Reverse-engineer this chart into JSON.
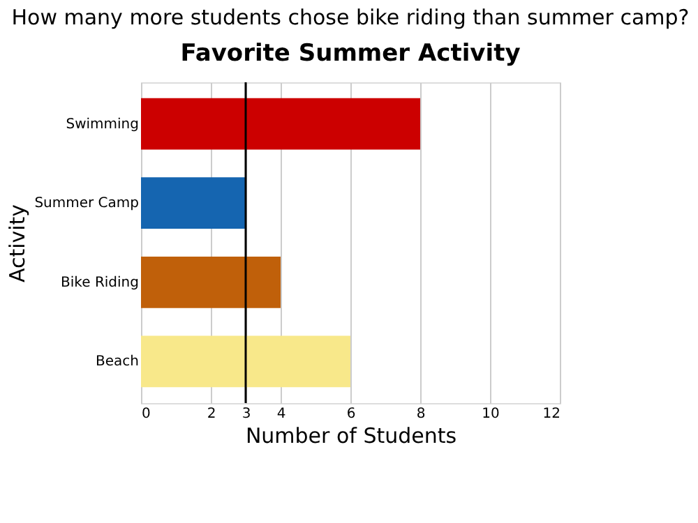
{
  "chart_data": {
    "type": "bar",
    "orientation": "horizontal",
    "title": "How many more students chose bike riding than summer camp?",
    "subtitle": "Favorite Summer Activity",
    "xlabel": "Number of Students",
    "ylabel": "Activity",
    "categories": [
      "Swimming",
      "Summer Camp",
      "Bike Riding",
      "Beach"
    ],
    "values": [
      8,
      3,
      4,
      6
    ],
    "colors": [
      "#cc0000",
      "#1565b0",
      "#c0600a",
      "#f8e88a"
    ],
    "xlim": [
      0,
      12
    ],
    "xticks": [
      0,
      2,
      3,
      4,
      6,
      8,
      10,
      12
    ],
    "grid": "x",
    "ref_lines": [
      {
        "axis": "x",
        "value": 3,
        "color": "#000000"
      }
    ]
  }
}
